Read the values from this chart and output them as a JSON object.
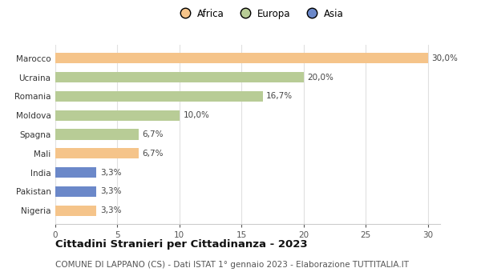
{
  "countries": [
    "Marocco",
    "Ucraina",
    "Romania",
    "Moldova",
    "Spagna",
    "Mali",
    "India",
    "Pakistan",
    "Nigeria"
  ],
  "values": [
    30.0,
    20.0,
    16.7,
    10.0,
    6.7,
    6.7,
    3.3,
    3.3,
    3.3
  ],
  "labels": [
    "30,0%",
    "20,0%",
    "16,7%",
    "10,0%",
    "6,7%",
    "6,7%",
    "3,3%",
    "3,3%",
    "3,3%"
  ],
  "continents": [
    "Africa",
    "Europa",
    "Europa",
    "Europa",
    "Europa",
    "Africa",
    "Asia",
    "Asia",
    "Africa"
  ],
  "colors": {
    "Africa": "#F5C48A",
    "Europa": "#B8CC96",
    "Asia": "#6B88C9"
  },
  "xlim": [
    0,
    31
  ],
  "xticks": [
    0,
    5,
    10,
    15,
    20,
    25,
    30
  ],
  "title": "Cittadini Stranieri per Cittadinanza - 2023",
  "subtitle": "COMUNE DI LAPPANO (CS) - Dati ISTAT 1° gennaio 2023 - Elaborazione TUTTITALIA.IT",
  "background_color": "#ffffff",
  "bar_height": 0.55,
  "grid_color": "#e0e0e0",
  "title_fontsize": 9.5,
  "subtitle_fontsize": 7.5,
  "label_fontsize": 7.5,
  "tick_fontsize": 7.5,
  "legend_fontsize": 8.5
}
